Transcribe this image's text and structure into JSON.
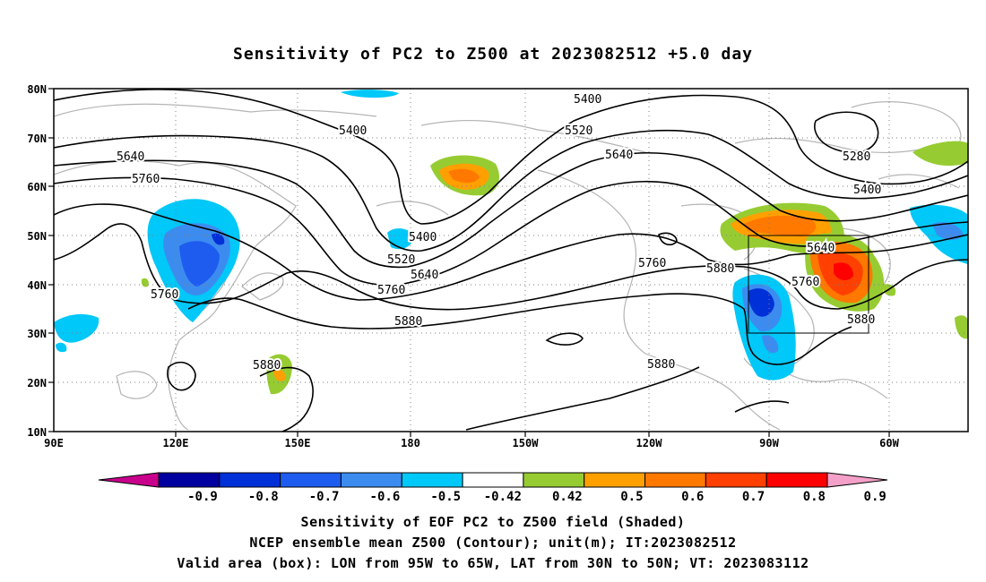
{
  "title": "Sensitivity of PC2 to Z500 at 2023082512 +5.0 day",
  "lat_labels": [
    "80N",
    "70N",
    "60N",
    "50N",
    "40N",
    "30N",
    "20N",
    "10N"
  ],
  "lon_labels": [
    "90E",
    "120E",
    "150E",
    "180",
    "150W",
    "120W",
    "90W",
    "60W"
  ],
  "contour_labels": [
    "5400",
    "5400",
    "5520",
    "5640",
    "5760",
    "5640",
    "5760",
    "5400",
    "5520",
    "5640",
    "5760",
    "5880",
    "5760",
    "5880",
    "5280",
    "5400",
    "5640",
    "5760",
    "5880",
    "5880"
  ],
  "colorbar": {
    "labels": [
      "-0.9",
      "-0.8",
      "-0.7",
      "-0.6",
      "-0.5",
      "-0.42",
      "0.42",
      "0.5",
      "0.6",
      "0.7",
      "0.8",
      "0.9"
    ],
    "colors": [
      "#c8008c",
      "#0000a0",
      "#0030d8",
      "#1e5cf0",
      "#3c8cf0",
      "#00c8f8",
      "#ffffff",
      "#96cc32",
      "#ffa000",
      "#ff7800",
      "#ff4000",
      "#ff0000",
      "#f4a0c8"
    ]
  },
  "valid_box": {
    "lon_from": "95W",
    "lon_to": "65W",
    "lat_from": "30N",
    "lat_to": "50N"
  },
  "captions": [
    "Sensitivity of EOF PC2 to Z500 field (Shaded)",
    "NCEP ensemble mean Z500 (Contour); unit(m); IT:2023082512",
    "Valid area (box): LON from 95W to 65W, LAT from 30N to 50N; VT: 2023083112"
  ]
}
